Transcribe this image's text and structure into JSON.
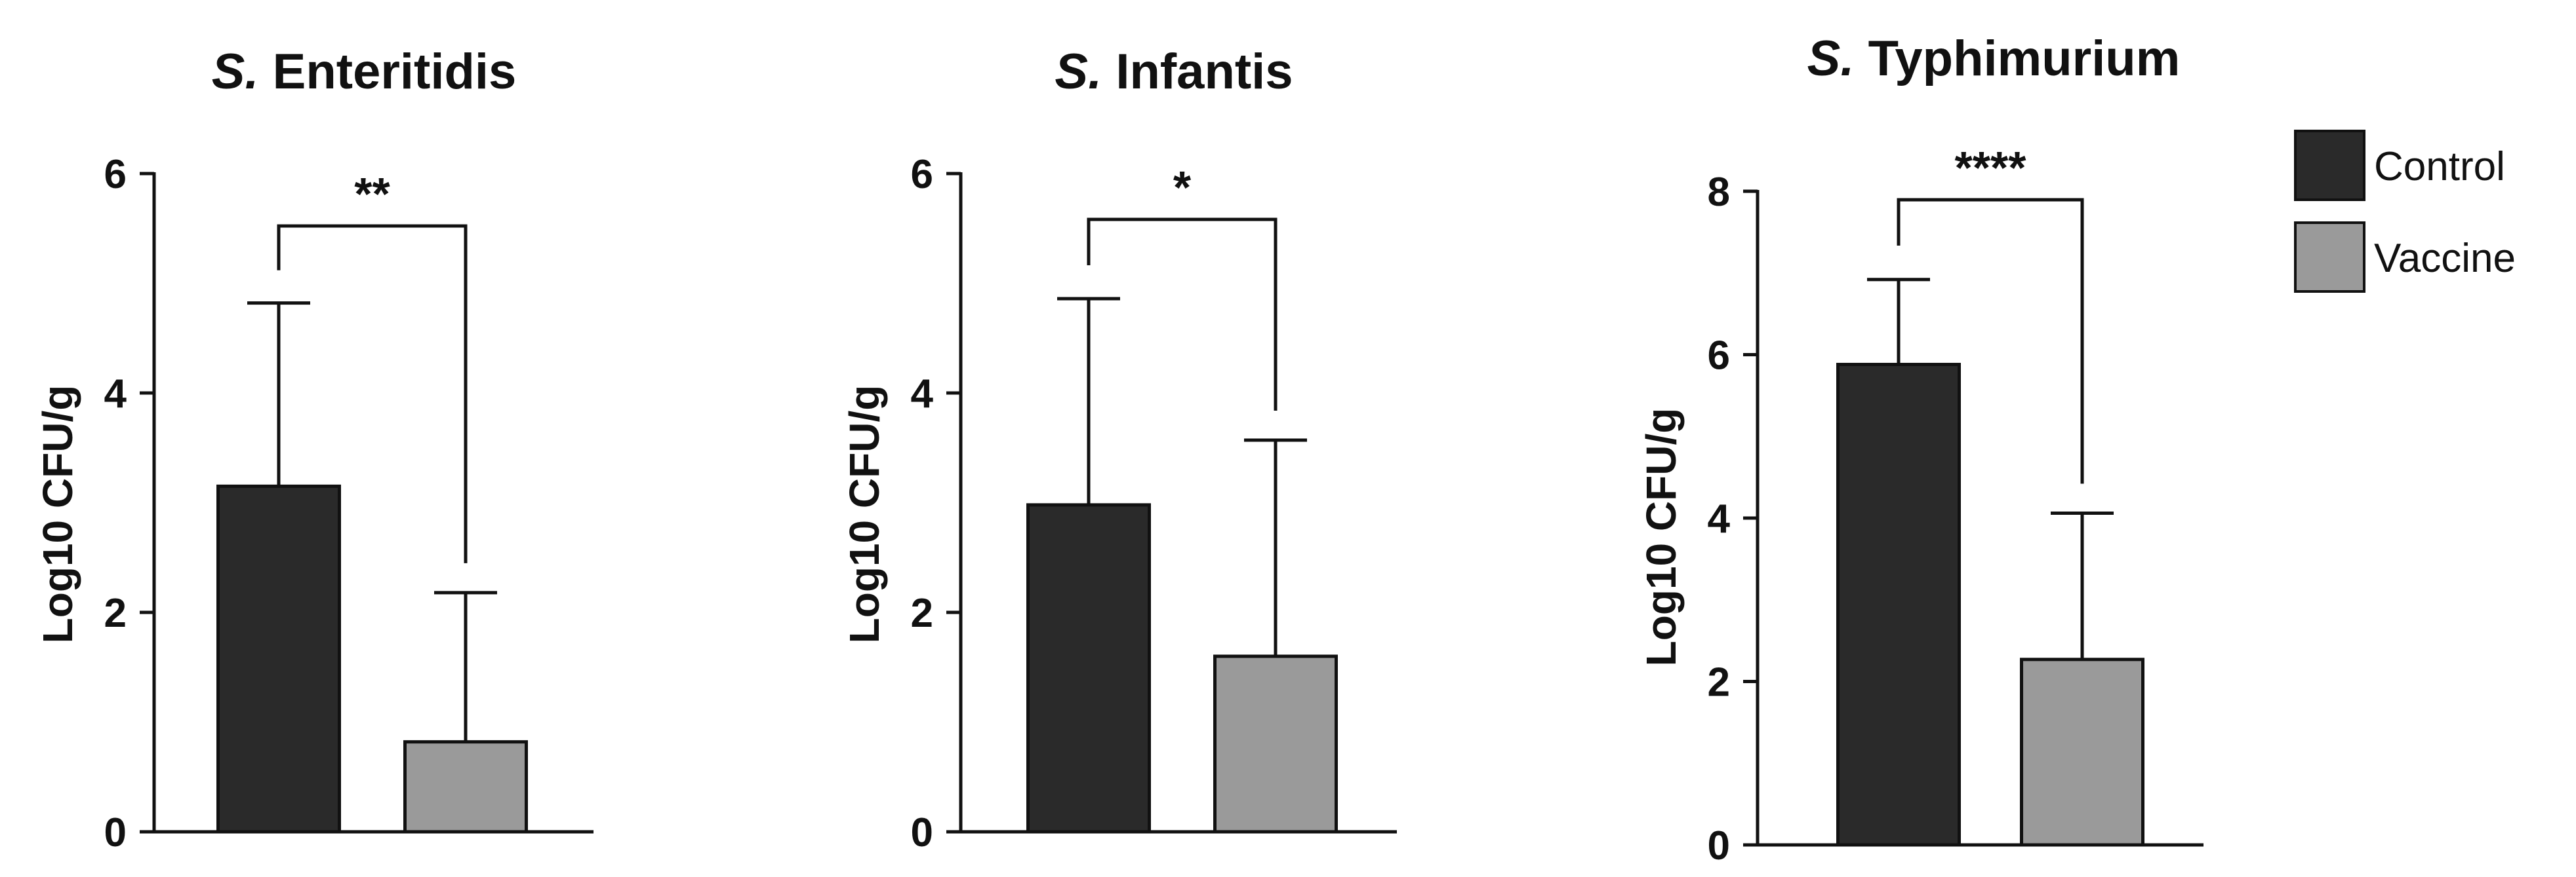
{
  "legend": {
    "entries": [
      {
        "label": "Control",
        "color": "#2a2a2a"
      },
      {
        "label": "Vaccine",
        "color": "#9a9a9a"
      }
    ]
  },
  "chart_data": [
    {
      "type": "bar",
      "title_italic": "S.",
      "title_rest": " Enteritidis",
      "ylabel": "Log10 CFU/g",
      "xlabel": "",
      "ylim": [
        0,
        6
      ],
      "yticks": [
        0,
        2,
        4,
        6
      ],
      "categories": [
        "Control",
        "Vaccine"
      ],
      "values": [
        3.15,
        0.82
      ],
      "error_upper": [
        4.82,
        2.18
      ],
      "significance": "**"
    },
    {
      "type": "bar",
      "title_italic": "S.",
      "title_rest": " Infantis",
      "ylabel": "Log10 CFU/g",
      "xlabel": "",
      "ylim": [
        0,
        6
      ],
      "yticks": [
        0,
        2,
        4,
        6
      ],
      "categories": [
        "Control",
        "Vaccine"
      ],
      "values": [
        2.98,
        1.6
      ],
      "error_upper": [
        4.86,
        3.57
      ],
      "significance": "*"
    },
    {
      "type": "bar",
      "title_italic": "S.",
      "title_rest": " Typhimurium",
      "ylabel": "Log10 CFU/g",
      "xlabel": "",
      "ylim": [
        0,
        8
      ],
      "yticks": [
        0,
        2,
        4,
        6,
        8
      ],
      "categories": [
        "Control",
        "Vaccine"
      ],
      "values": [
        5.88,
        2.27
      ],
      "error_upper": [
        6.92,
        4.06
      ],
      "significance": "****"
    }
  ]
}
